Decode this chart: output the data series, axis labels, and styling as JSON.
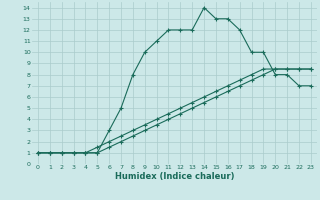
{
  "xlabel": "Humidex (Indice chaleur)",
  "bg_color": "#cce8e8",
  "grid_color": "#aacccc",
  "line_color": "#1a6b5a",
  "xlim": [
    -0.5,
    23.5
  ],
  "ylim": [
    0,
    14.5
  ],
  "xticks": [
    0,
    1,
    2,
    3,
    4,
    5,
    6,
    7,
    8,
    9,
    10,
    11,
    12,
    13,
    14,
    15,
    16,
    17,
    18,
    19,
    20,
    21,
    22,
    23
  ],
  "yticks": [
    0,
    1,
    2,
    3,
    4,
    5,
    6,
    7,
    8,
    9,
    10,
    11,
    12,
    13,
    14
  ],
  "line1_x": [
    0,
    1,
    2,
    3,
    4,
    5,
    6,
    7,
    8,
    9,
    10,
    11,
    12,
    13,
    14,
    15,
    16,
    17,
    18,
    19,
    20,
    21,
    22,
    23
  ],
  "line1_y": [
    1,
    1,
    1,
    1,
    1,
    1,
    3,
    5,
    8,
    10,
    11,
    12,
    12,
    12,
    14,
    13,
    13,
    12,
    10,
    10,
    8,
    8,
    7,
    7
  ],
  "line2_x": [
    0,
    1,
    2,
    3,
    4,
    5,
    6,
    7,
    8,
    9,
    10,
    11,
    12,
    13,
    14,
    15,
    16,
    17,
    18,
    19,
    20,
    21,
    22,
    23
  ],
  "line2_y": [
    1,
    1,
    1,
    1,
    1,
    1.5,
    2,
    2.5,
    3,
    3.5,
    4,
    4.5,
    5,
    5.5,
    6,
    6.5,
    7,
    7.5,
    8,
    8.5,
    8.5,
    8.5,
    8.5,
    8.5
  ],
  "line3_x": [
    0,
    1,
    2,
    3,
    4,
    5,
    6,
    7,
    8,
    9,
    10,
    11,
    12,
    13,
    14,
    15,
    16,
    17,
    18,
    19,
    20,
    21,
    22,
    23
  ],
  "line3_y": [
    1,
    1,
    1,
    1,
    1,
    1,
    1.5,
    2,
    2.5,
    3,
    3.5,
    4,
    4.5,
    5,
    5.5,
    6,
    6.5,
    7,
    7.5,
    8,
    8.5,
    8.5,
    8.5,
    8.5
  ],
  "tick_fontsize": 4.5,
  "xlabel_fontsize": 6.0
}
